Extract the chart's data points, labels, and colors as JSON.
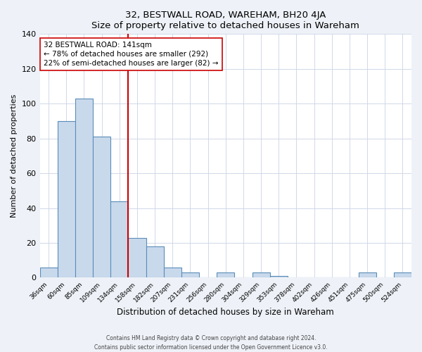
{
  "title": "32, BESTWALL ROAD, WAREHAM, BH20 4JA",
  "subtitle": "Size of property relative to detached houses in Wareham",
  "xlabel": "Distribution of detached houses by size in Wareham",
  "ylabel": "Number of detached properties",
  "bin_labels": [
    "36sqm",
    "60sqm",
    "85sqm",
    "109sqm",
    "134sqm",
    "158sqm",
    "182sqm",
    "207sqm",
    "231sqm",
    "256sqm",
    "280sqm",
    "304sqm",
    "329sqm",
    "353sqm",
    "378sqm",
    "402sqm",
    "426sqm",
    "451sqm",
    "475sqm",
    "500sqm",
    "524sqm"
  ],
  "bar_heights": [
    6,
    90,
    103,
    81,
    44,
    23,
    18,
    6,
    3,
    0,
    3,
    0,
    3,
    1,
    0,
    0,
    0,
    0,
    3,
    0,
    3
  ],
  "bar_color": "#c9d9ec",
  "bar_edge_color": "#5b8db8",
  "vline_x": 4.0,
  "vline_color": "#cc0000",
  "annotation_title": "32 BESTWALL ROAD: 141sqm",
  "annotation_line1": "← 78% of detached houses are smaller (292)",
  "annotation_line2": "22% of semi-detached houses are larger (82) →",
  "annotation_box_edge_color": "#cc0000",
  "ylim": [
    0,
    140
  ],
  "yticks": [
    0,
    20,
    40,
    60,
    80,
    100,
    120,
    140
  ],
  "footer1": "Contains HM Land Registry data © Crown copyright and database right 2024.",
  "footer2": "Contains public sector information licensed under the Open Government Licence v3.0.",
  "background_color": "#eef2f8",
  "plot_background": "#ffffff",
  "grid_color": "#d0d8e8"
}
